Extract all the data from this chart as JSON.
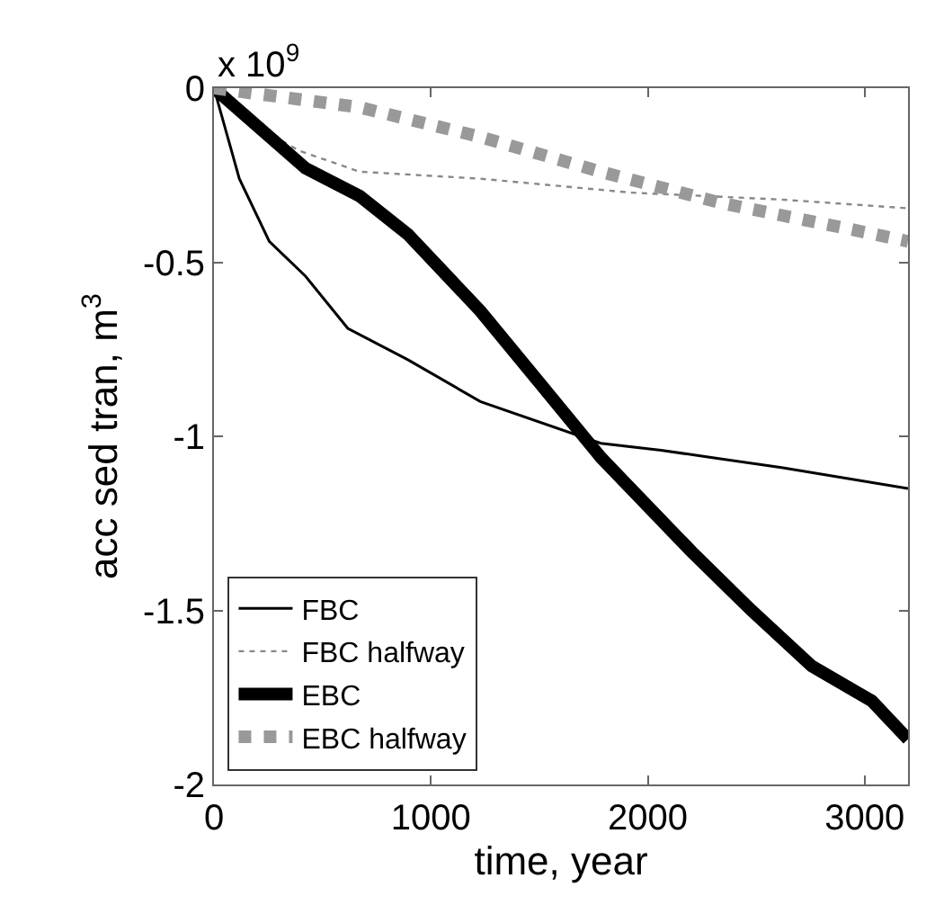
{
  "chart_data": {
    "type": "line",
    "xlabel": "time, year",
    "ylabel": "acc sed tran, m$^{3}$",
    "annotations": [
      "x 10$^{9}$"
    ],
    "xlim": [
      0,
      3200
    ],
    "xticks": [
      0,
      1000,
      2000,
      3000
    ],
    "ylim": [
      -2,
      0
    ],
    "yticks": [
      -2,
      -1.5,
      -1,
      -0.5,
      0
    ],
    "grid": false,
    "legend": "bottom left",
    "marker": "none",
    "series": [
      {
        "name": "FBC",
        "color": "#000000",
        "line_style": "solid",
        "x": [
          0,
          117,
          255,
          422,
          617,
          894,
          1228,
          1783,
          2061,
          2617,
          3200
        ],
        "values": [
          0,
          -0.26,
          -0.44,
          -0.54,
          -0.69,
          -0.78,
          -0.9,
          -1.02,
          -1.04,
          -1.09,
          -1.15
        ]
      },
      {
        "name": "FBC halfway",
        "color": "#888888",
        "line_style": "dotted",
        "x": [
          0,
          200,
          394,
          672,
          1228,
          1922,
          2617,
          3200
        ],
        "values": [
          0,
          -0.11,
          -0.18,
          -0.24,
          -0.26,
          -0.3,
          -0.32,
          -0.345
        ]
      },
      {
        "name": "EBC",
        "color": "#000000",
        "line_style": "solid",
        "x": [
          0,
          422,
          672,
          894,
          1228,
          1506,
          1783,
          1922,
          2200,
          2478,
          2756,
          3033,
          3200
        ],
        "values": [
          0,
          -0.23,
          -0.31,
          -0.42,
          -0.64,
          -0.85,
          -1.06,
          -1.15,
          -1.33,
          -1.5,
          -1.66,
          -1.76,
          -1.87
        ]
      },
      {
        "name": "EBC halfway",
        "color": "#999999",
        "line_style": "dotted",
        "x": [
          0,
          672,
          1228,
          1783,
          2339,
          2894,
          3200
        ],
        "values": [
          0,
          -0.055,
          -0.14,
          -0.24,
          -0.33,
          -0.4,
          -0.44
        ]
      }
    ]
  }
}
